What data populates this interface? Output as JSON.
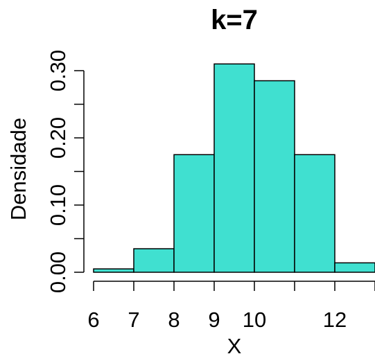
{
  "colors": {
    "bar_fill": "#40E0D0",
    "bar_stroke": "#000000"
  },
  "chart_data": {
    "type": "bar",
    "title": "k=7",
    "xlabel": "X",
    "ylabel": "Densidade",
    "bins": [
      {
        "start": 6,
        "end": 7,
        "density": 0.005
      },
      {
        "start": 7,
        "end": 8,
        "density": 0.035
      },
      {
        "start": 8,
        "end": 9,
        "density": 0.175
      },
      {
        "start": 9,
        "end": 10,
        "density": 0.31
      },
      {
        "start": 10,
        "end": 11,
        "density": 0.285
      },
      {
        "start": 11,
        "end": 12,
        "density": 0.175
      },
      {
        "start": 12,
        "end": 13,
        "density": 0.014
      }
    ],
    "x_ticks": [
      6,
      7,
      8,
      9,
      10,
      12
    ],
    "x_tick_marks": [
      6,
      7,
      8,
      9,
      10,
      11,
      12,
      13
    ],
    "y_ticks": [
      "0.00",
      "0.10",
      "0.20",
      "0.30"
    ],
    "y_minor_ticks": [
      0.05,
      0.15,
      0.25
    ],
    "xlim": [
      6,
      13
    ],
    "ylim": [
      0,
      0.3
    ],
    "grid": false,
    "legend": "none"
  }
}
